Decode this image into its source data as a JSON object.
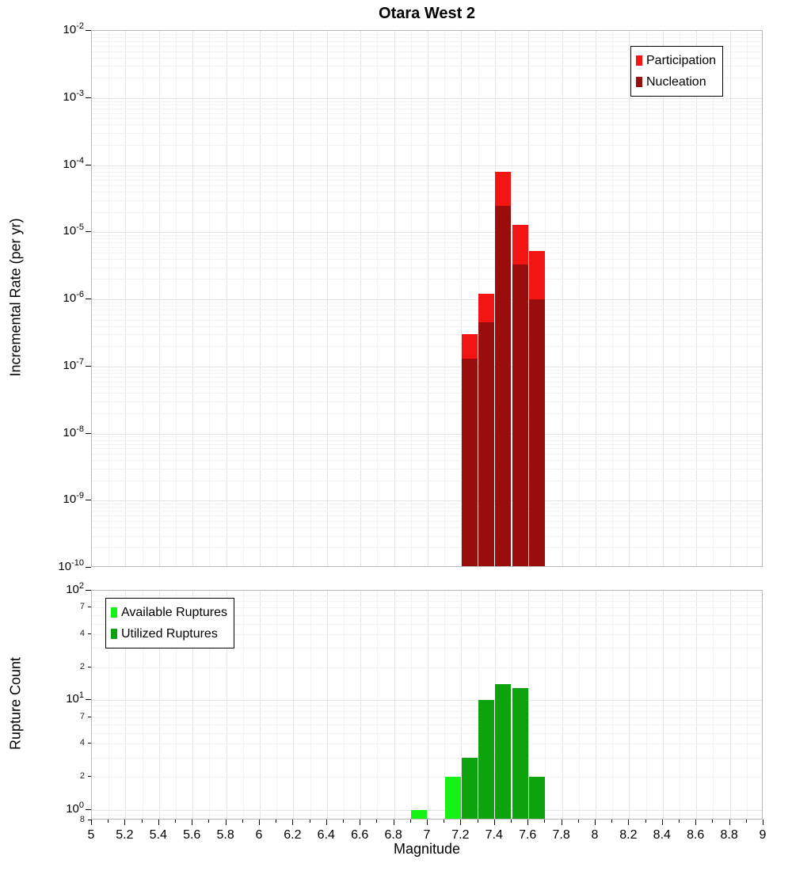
{
  "xlabel": "Magnitude",
  "x_ticks": [
    {
      "v": 5,
      "label": "5"
    },
    {
      "v": 5.2,
      "label": "5.2"
    },
    {
      "v": 5.4,
      "label": "5.4"
    },
    {
      "v": 5.6,
      "label": "5.6"
    },
    {
      "v": 5.8,
      "label": "5.8"
    },
    {
      "v": 6,
      "label": "6"
    },
    {
      "v": 6.2,
      "label": "6.2"
    },
    {
      "v": 6.4,
      "label": "6.4"
    },
    {
      "v": 6.6,
      "label": "6.6"
    },
    {
      "v": 6.8,
      "label": "6.8"
    },
    {
      "v": 7,
      "label": "7"
    },
    {
      "v": 7.2,
      "label": "7.2"
    },
    {
      "v": 7.4,
      "label": "7.4"
    },
    {
      "v": 7.6,
      "label": "7.6"
    },
    {
      "v": 7.8,
      "label": "7.8"
    },
    {
      "v": 8,
      "label": "8"
    },
    {
      "v": 8.2,
      "label": "8.2"
    },
    {
      "v": 8.4,
      "label": "8.4"
    },
    {
      "v": 8.6,
      "label": "8.6"
    },
    {
      "v": 8.8,
      "label": "8.8"
    },
    {
      "v": 9,
      "label": "9"
    }
  ],
  "chart_data": [
    {
      "type": "bar",
      "id": "rate",
      "title": "Otara West 2",
      "ylabel": "Incremental Rate (per yr)",
      "yscale": "log",
      "ylim": [
        1e-10,
        0.01
      ],
      "xlim": [
        5,
        9
      ],
      "bin_width": 0.1,
      "grid": true,
      "legend_position": "top-right",
      "y_ticks": [
        {
          "v": 0.01,
          "exp": "-2"
        },
        {
          "v": 0.001,
          "exp": "-3"
        },
        {
          "v": 0.0001,
          "exp": "-4"
        },
        {
          "v": 1e-05,
          "exp": "-5"
        },
        {
          "v": 1e-06,
          "exp": "-6"
        },
        {
          "v": 1e-07,
          "exp": "-7"
        },
        {
          "v": 1e-08,
          "exp": "-8"
        },
        {
          "v": 1e-09,
          "exp": "-9"
        },
        {
          "v": 1e-10,
          "exp": "-10"
        }
      ],
      "legend": [
        {
          "label": "Participation",
          "color": "#f31414"
        },
        {
          "label": "Nucleation",
          "color": "#9a0d0d"
        }
      ],
      "series": [
        {
          "name": "Participation",
          "color": "#f31414",
          "bins": [
            {
              "x": 7.2,
              "y": 3e-07
            },
            {
              "x": 7.3,
              "y": 1.2e-06
            },
            {
              "x": 7.4,
              "y": 8e-05
            },
            {
              "x": 7.5,
              "y": 1.3e-05
            },
            {
              "x": 7.6,
              "y": 5.2e-06
            }
          ]
        },
        {
          "name": "Nucleation",
          "color": "#9a0d0d",
          "bins": [
            {
              "x": 7.2,
              "y": 1.3e-07
            },
            {
              "x": 7.3,
              "y": 4.5e-07
            },
            {
              "x": 7.4,
              "y": 2.5e-05
            },
            {
              "x": 7.5,
              "y": 3.3e-06
            },
            {
              "x": 7.6,
              "y": 1e-06
            }
          ]
        }
      ]
    },
    {
      "type": "bar",
      "id": "count",
      "ylabel": "Rupture Count",
      "yscale": "log",
      "ylim": [
        0.8,
        100
      ],
      "xlim": [
        5,
        9
      ],
      "bin_width": 0.1,
      "grid": true,
      "legend_position": "top-left",
      "y_ticks": [
        {
          "v": 100,
          "exp": "2"
        },
        {
          "v": 10,
          "exp": "1"
        },
        {
          "v": 1,
          "exp": "0"
        }
      ],
      "y_minor_labels": [
        {
          "v": 70,
          "label": "7"
        },
        {
          "v": 40,
          "label": "4"
        },
        {
          "v": 20,
          "label": "2"
        },
        {
          "v": 7,
          "label": "7"
        },
        {
          "v": 4,
          "label": "4"
        },
        {
          "v": 2,
          "label": "2"
        },
        {
          "v": 0.8,
          "label": "8"
        }
      ],
      "legend": [
        {
          "label": "Available Ruptures",
          "color": "#16f216"
        },
        {
          "label": "Utilized Ruptures",
          "color": "#0da30d"
        }
      ],
      "series": [
        {
          "name": "Available Ruptures",
          "color": "#16f216",
          "bins": [
            {
              "x": 6.9,
              "y": 1
            },
            {
              "x": 7.1,
              "y": 2
            },
            {
              "x": 7.2,
              "y": 3
            },
            {
              "x": 7.3,
              "y": 10
            },
            {
              "x": 7.4,
              "y": 14
            },
            {
              "x": 7.5,
              "y": 13
            },
            {
              "x": 7.6,
              "y": 2
            }
          ]
        },
        {
          "name": "Utilized Ruptures",
          "color": "#0da30d",
          "bins": [
            {
              "x": 7.2,
              "y": 3
            },
            {
              "x": 7.3,
              "y": 10
            },
            {
              "x": 7.4,
              "y": 14
            },
            {
              "x": 7.5,
              "y": 13
            },
            {
              "x": 7.6,
              "y": 2
            }
          ]
        }
      ]
    }
  ]
}
